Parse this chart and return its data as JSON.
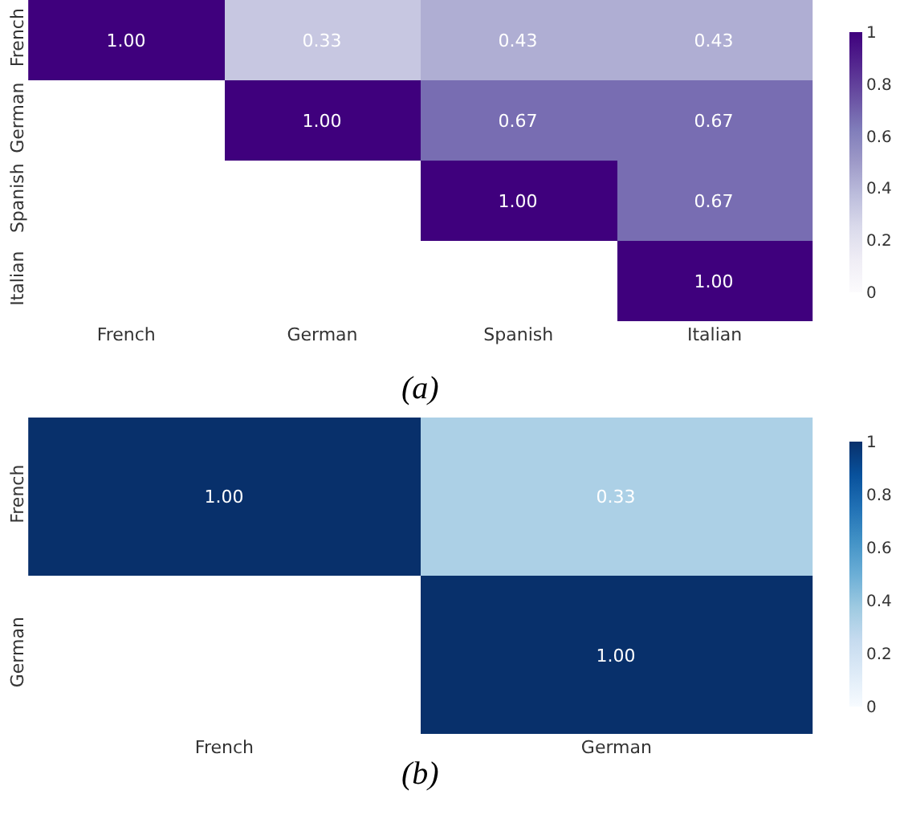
{
  "chart_data": [
    {
      "type": "heatmap",
      "categories": [
        "French",
        "German",
        "Spanish",
        "Italian"
      ],
      "y_categories": [
        "French",
        "German",
        "Spanish",
        "Italian"
      ],
      "cells": [
        [
          1.0,
          0.33,
          0.43,
          0.43
        ],
        [
          null,
          1.0,
          0.67,
          0.67
        ],
        [
          null,
          null,
          1.0,
          0.67
        ],
        [
          null,
          null,
          null,
          1.0
        ]
      ],
      "cell_labels": [
        [
          "1.00",
          "0.33",
          "0.43",
          "0.43"
        ],
        [
          null,
          "1.00",
          "0.67",
          "0.67"
        ],
        [
          null,
          null,
          "1.00",
          "0.67"
        ],
        [
          null,
          null,
          null,
          "1.00"
        ]
      ],
      "clim": [
        0,
        1
      ],
      "cticks": [
        0,
        0.2,
        0.4,
        0.6,
        0.8,
        1
      ],
      "color": "Purples",
      "annotations": [
        "(a)"
      ]
    },
    {
      "type": "heatmap",
      "categories": [
        "French",
        "German"
      ],
      "y_categories": [
        "French",
        "German"
      ],
      "cells": [
        [
          1.0,
          0.33
        ],
        [
          null,
          1.0
        ]
      ],
      "cell_labels": [
        [
          "1.00",
          "0.33"
        ],
        [
          null,
          "1.00"
        ]
      ],
      "clim": [
        0,
        1
      ],
      "cticks": [
        0,
        0.2,
        0.4,
        0.6,
        0.8,
        1
      ],
      "color": "Blues",
      "annotations": [
        "(b)"
      ]
    }
  ]
}
